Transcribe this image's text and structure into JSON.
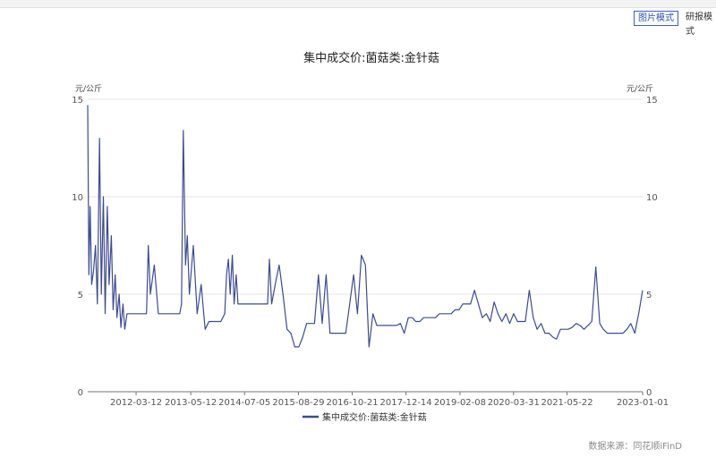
{
  "toolbar": {
    "image_mode": "图片模式",
    "research_mode": "研报模式"
  },
  "source_label": "数据来源：同花顺iFinD",
  "chart_data": {
    "type": "line",
    "title": "集中成交价:菌菇类:金针菇",
    "ylabel_left": "元/公斤",
    "ylabel_right": "元/公斤",
    "ylim": [
      0,
      15
    ],
    "yticks": [
      0,
      5,
      10,
      15
    ],
    "xlim": [
      "2011-03-01",
      "2023-01-01"
    ],
    "xtick_labels": [
      "2012-03-12",
      "2013-05-12",
      "2014-07-05",
      "2015-08-29",
      "2016-10-21",
      "2017-12-14",
      "2019-02-08",
      "2020-03-31",
      "2021-05-22",
      "2023-01-01"
    ],
    "grid": true,
    "legend_position": "bottom",
    "line_color": "#3c4b94",
    "series": [
      {
        "name": "集中成交价:菌菇类:金针菇",
        "x": [
          "2011-03-01",
          "2011-03-10",
          "2011-03-20",
          "2011-04-01",
          "2011-04-15",
          "2011-05-01",
          "2011-05-15",
          "2011-06-01",
          "2011-06-15",
          "2011-07-01",
          "2011-07-15",
          "2011-08-01",
          "2011-08-15",
          "2011-09-01",
          "2011-09-15",
          "2011-10-01",
          "2011-10-15",
          "2011-11-01",
          "2011-11-15",
          "2011-12-01",
          "2011-12-15",
          "2012-01-01",
          "2012-01-15",
          "2012-02-01",
          "2012-02-15",
          "2012-03-01",
          "2012-03-15",
          "2012-04-01",
          "2012-04-15",
          "2012-05-01",
          "2012-05-15",
          "2012-06-01",
          "2012-06-15",
          "2012-07-01",
          "2012-08-01",
          "2012-09-01",
          "2012-10-01",
          "2012-11-01",
          "2012-12-01",
          "2013-01-01",
          "2013-02-01",
          "2013-02-15",
          "2013-03-01",
          "2013-03-15",
          "2013-04-01",
          "2013-04-15",
          "2013-05-01",
          "2013-06-01",
          "2013-07-01",
          "2013-08-01",
          "2013-09-01",
          "2013-10-01",
          "2013-11-01",
          "2013-12-01",
          "2014-01-01",
          "2014-02-01",
          "2014-02-15",
          "2014-03-01",
          "2014-03-15",
          "2014-04-01",
          "2014-04-15",
          "2014-05-01",
          "2014-05-15",
          "2014-06-01",
          "2014-06-15",
          "2014-07-01",
          "2014-08-01",
          "2014-09-01",
          "2014-10-01",
          "2014-11-01",
          "2014-12-01",
          "2015-01-01",
          "2015-01-15",
          "2015-02-01",
          "2015-03-01",
          "2015-04-01",
          "2015-05-01",
          "2015-06-01",
          "2015-07-01",
          "2015-08-01",
          "2015-09-01",
          "2015-10-01",
          "2015-11-01",
          "2015-12-01",
          "2016-01-01",
          "2016-02-01",
          "2016-03-01",
          "2016-04-01",
          "2016-05-01",
          "2016-06-01",
          "2016-07-01",
          "2016-08-01",
          "2016-09-01",
          "2016-10-01",
          "2016-11-01",
          "2016-12-01",
          "2017-01-01",
          "2017-02-01",
          "2017-03-01",
          "2017-04-01",
          "2017-05-01",
          "2017-06-01",
          "2017-07-01",
          "2017-08-01",
          "2017-09-01",
          "2017-10-01",
          "2017-11-01",
          "2017-12-01",
          "2018-01-01",
          "2018-02-01",
          "2018-03-01",
          "2018-04-01",
          "2018-05-01",
          "2018-06-01",
          "2018-07-01",
          "2018-08-01",
          "2018-09-01",
          "2018-10-01",
          "2018-11-01",
          "2018-12-01",
          "2019-01-01",
          "2019-02-01",
          "2019-03-01",
          "2019-04-01",
          "2019-05-01",
          "2019-06-01",
          "2019-07-01",
          "2019-08-01",
          "2019-09-01",
          "2019-10-01",
          "2019-11-01",
          "2019-12-01",
          "2020-01-01",
          "2020-02-01",
          "2020-03-01",
          "2020-04-01",
          "2020-05-01",
          "2020-06-01",
          "2020-07-01",
          "2020-08-01",
          "2020-09-01",
          "2020-10-01",
          "2020-11-01",
          "2020-12-01",
          "2021-01-01",
          "2021-02-01",
          "2021-03-01",
          "2021-04-01",
          "2021-05-01",
          "2021-06-01",
          "2021-07-01",
          "2021-08-01",
          "2021-09-01",
          "2021-10-01",
          "2021-11-01",
          "2021-12-01",
          "2022-01-01",
          "2022-02-01",
          "2022-03-01",
          "2022-04-01",
          "2022-05-01",
          "2022-06-01",
          "2022-07-01",
          "2022-08-01",
          "2022-09-01",
          "2022-10-01",
          "2022-11-01",
          "2022-12-01",
          "2023-01-01"
        ],
        "values": [
          14.7,
          6.0,
          9.5,
          5.5,
          6.2,
          7.5,
          4.5,
          13.0,
          5.0,
          10.0,
          4.0,
          9.5,
          5.5,
          8.0,
          4.2,
          6.0,
          3.8,
          5.0,
          3.3,
          4.5,
          3.2,
          4.0,
          4.0,
          4.0,
          4.0,
          4.0,
          4.0,
          4.0,
          4.0,
          4.0,
          4.0,
          4.0,
          7.5,
          5.0,
          6.5,
          4.0,
          4.0,
          4.0,
          4.0,
          4.0,
          4.0,
          4.0,
          4.5,
          13.4,
          6.5,
          8.0,
          5.0,
          7.5,
          4.0,
          5.5,
          3.2,
          3.6,
          3.6,
          3.6,
          3.6,
          4.0,
          6.0,
          6.8,
          5.0,
          7.0,
          4.5,
          6.0,
          4.5,
          4.5,
          4.5,
          4.5,
          4.5,
          4.5,
          4.5,
          4.5,
          4.5,
          4.5,
          6.8,
          4.5,
          5.5,
          6.5,
          5.0,
          3.2,
          3.0,
          2.3,
          2.3,
          2.8,
          3.5,
          3.5,
          3.5,
          6.0,
          3.5,
          6.0,
          3.0,
          3.0,
          3.0,
          3.0,
          3.0,
          4.5,
          6.0,
          4.0,
          7.0,
          6.5,
          2.3,
          4.0,
          3.4,
          3.4,
          3.4,
          3.4,
          3.4,
          3.4,
          3.5,
          3.0,
          3.8,
          3.8,
          3.6,
          3.6,
          3.8,
          3.8,
          3.8,
          3.8,
          4.0,
          4.0,
          4.0,
          4.0,
          4.2,
          4.2,
          4.5,
          4.5,
          4.5,
          5.2,
          4.5,
          3.8,
          4.0,
          3.6,
          4.6,
          4.0,
          3.6,
          4.0,
          3.5,
          4.0,
          3.6,
          3.6,
          3.6,
          5.2,
          3.8,
          3.2,
          3.5,
          3.0,
          3.0,
          2.8,
          2.7,
          3.2,
          3.2,
          3.2,
          3.3,
          3.5,
          3.4,
          3.2,
          3.4,
          3.6,
          6.4,
          3.5,
          3.2,
          3.0,
          3.0,
          3.0,
          3.0,
          3.0,
          3.2,
          3.5,
          3.0,
          4.0,
          5.2
        ]
      }
    ]
  }
}
